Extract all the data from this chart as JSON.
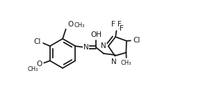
{
  "bg_color": "#ffffff",
  "bond_color": "#1a1a1a",
  "text_color": "#1a1a1a",
  "bond_lw": 1.3,
  "font_size": 7.5,
  "figsize": [
    2.92,
    1.48
  ],
  "dpi": 100,
  "xlim": [
    0.0,
    1.0
  ],
  "ylim": [
    0.1,
    0.9
  ]
}
